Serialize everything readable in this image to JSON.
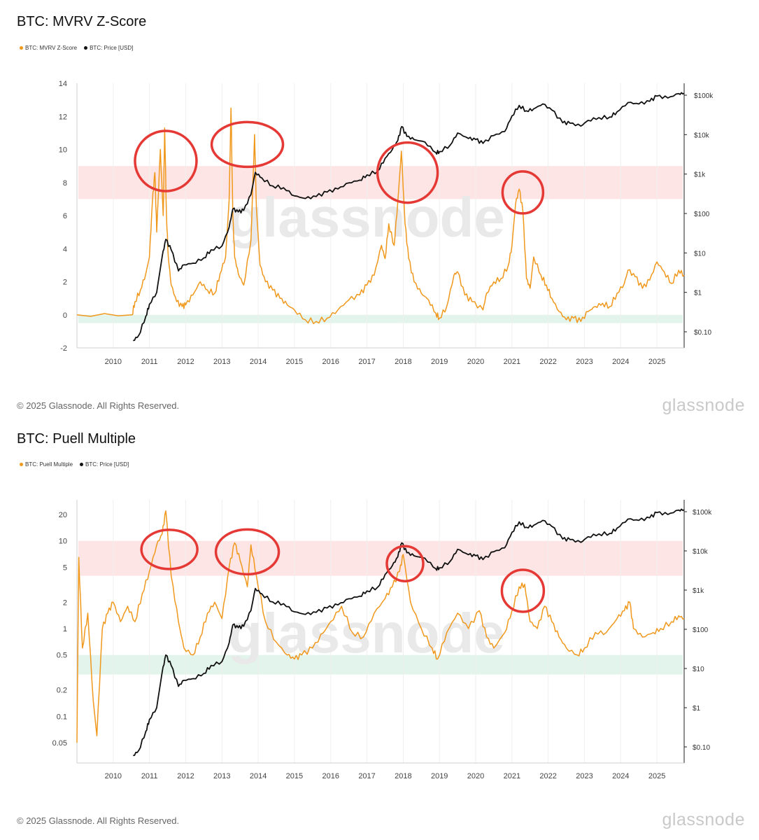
{
  "chart_data": [
    {
      "type": "line",
      "title": "BTC: MVRV Z-Score",
      "legend": [
        "BTC: MVRV Z-Score",
        "BTC: Price [USD]"
      ],
      "legend_placement": "top-left",
      "copyright": "© 2025 Glassnode. All Rights Reserved.",
      "brand": "glassnode",
      "watermark": "glassnode",
      "x_ticks": [
        "2010",
        "2011",
        "2012",
        "2013",
        "2014",
        "2015",
        "2016",
        "2017",
        "2018",
        "2019",
        "2020",
        "2021",
        "2022",
        "2023",
        "2024",
        "2025"
      ],
      "xlim": [
        2009.0,
        2025.75
      ],
      "y_left": {
        "ticks": [
          "14",
          "12",
          "10",
          "8",
          "6",
          "4",
          "2",
          "0",
          "-2"
        ],
        "lim": [
          -2,
          14
        ],
        "scale": "linear"
      },
      "y_right": {
        "ticks": [
          "$100k",
          "$10k",
          "$1k",
          "$100",
          "$10",
          "$1",
          "$0.10"
        ],
        "scale": "log"
      },
      "colors": {
        "indicator": "#f0981c",
        "price": "#111111",
        "high_band": "#fde0e0",
        "low_band": "#dff3ea",
        "circle": "#e53935"
      },
      "bands": {
        "high": [
          7.0,
          9.0
        ],
        "low": [
          -0.5,
          0.0
        ]
      },
      "series": [
        {
          "name": "BTC: MVRV Z-Score",
          "axis": "left",
          "x": [
            2009.0,
            2010.52,
            2010.6,
            2010.75,
            2010.9,
            2011.0,
            2011.08,
            2011.15,
            2011.2,
            2011.3,
            2011.38,
            2011.42,
            2011.47,
            2011.52,
            2011.6,
            2011.75,
            2011.9,
            2012.0,
            2012.2,
            2012.4,
            2012.6,
            2012.8,
            2012.95,
            2013.1,
            2013.2,
            2013.25,
            2013.3,
            2013.35,
            2013.45,
            2013.6,
            2013.8,
            2013.9,
            2013.95,
            2014.05,
            2014.2,
            2014.4,
            2014.6,
            2014.8,
            2015.0,
            2015.3,
            2015.6,
            2015.9,
            2016.2,
            2016.5,
            2016.8,
            2017.0,
            2017.2,
            2017.4,
            2017.5,
            2017.6,
            2017.75,
            2017.85,
            2017.95,
            2018.05,
            2018.15,
            2018.3,
            2018.5,
            2018.7,
            2018.9,
            2019.0,
            2019.2,
            2019.4,
            2019.5,
            2019.7,
            2019.9,
            2020.2,
            2020.3,
            2020.5,
            2020.7,
            2020.9,
            2021.0,
            2021.1,
            2021.2,
            2021.3,
            2021.4,
            2021.5,
            2021.6,
            2021.8,
            2021.95,
            2022.1,
            2022.3,
            2022.5,
            2022.7,
            2022.9,
            2023.1,
            2023.3,
            2023.5,
            2023.7,
            2023.9,
            2024.1,
            2024.2,
            2024.4,
            2024.6,
            2024.8,
            2025.0,
            2025.2,
            2025.4,
            2025.6,
            2025.75
          ],
          "y": [
            0.0,
            0.0,
            0.8,
            1.5,
            2.5,
            3.5,
            6.8,
            8.6,
            5.0,
            10.0,
            6.0,
            11.3,
            6.0,
            3.5,
            1.8,
            0.8,
            0.5,
            0.6,
            1.2,
            2.0,
            1.5,
            1.3,
            2.5,
            3.5,
            7.0,
            12.5,
            6.0,
            3.5,
            2.5,
            1.8,
            4.5,
            10.9,
            6.5,
            3.0,
            2.0,
            1.5,
            1.0,
            0.6,
            0.3,
            -0.3,
            -0.4,
            -0.2,
            0.3,
            0.9,
            1.2,
            1.8,
            2.4,
            4.2,
            3.4,
            5.5,
            4.2,
            6.8,
            9.9,
            5.5,
            3.4,
            2.0,
            1.3,
            0.9,
            0.1,
            -0.2,
            0.5,
            2.4,
            2.6,
            1.2,
            0.8,
            0.3,
            1.3,
            2.0,
            2.2,
            3.0,
            4.2,
            6.7,
            7.6,
            6.3,
            2.2,
            1.6,
            3.5,
            2.4,
            1.8,
            1.0,
            0.2,
            -0.3,
            -0.2,
            -0.4,
            0.2,
            0.5,
            0.7,
            0.5,
            1.3,
            1.9,
            2.7,
            2.3,
            1.6,
            2.1,
            3.2,
            2.6,
            1.9,
            2.7,
            2.4
          ]
        },
        {
          "name": "BTC: Price [USD]",
          "axis": "right",
          "x": [
            2010.55,
            2010.7,
            2010.9,
            2011.0,
            2011.2,
            2011.35,
            2011.45,
            2011.6,
            2011.8,
            2011.95,
            2012.2,
            2012.5,
            2012.7,
            2013.0,
            2013.2,
            2013.3,
            2013.45,
            2013.6,
            2013.8,
            2013.92,
            2014.1,
            2014.4,
            2014.7,
            2015.0,
            2015.3,
            2015.6,
            2015.9,
            2016.2,
            2016.5,
            2016.8,
            2017.0,
            2017.3,
            2017.5,
            2017.7,
            2017.85,
            2017.96,
            2018.1,
            2018.3,
            2018.6,
            2018.9,
            2019.0,
            2019.3,
            2019.5,
            2019.8,
            2020.0,
            2020.2,
            2020.5,
            2020.8,
            2021.0,
            2021.2,
            2021.4,
            2021.6,
            2021.85,
            2022.1,
            2022.4,
            2022.6,
            2022.9,
            2023.1,
            2023.4,
            2023.7,
            2023.9,
            2024.2,
            2024.5,
            2024.8,
            2025.0,
            2025.3,
            2025.6,
            2025.75
          ],
          "y": [
            0.06,
            0.08,
            0.25,
            0.5,
            1.0,
            8.0,
            22.0,
            12.0,
            3.5,
            5.0,
            5.5,
            7.5,
            12.0,
            15.0,
            45.0,
            130.0,
            110.0,
            120.0,
            300.0,
            1100.0,
            800.0,
            500.0,
            450.0,
            280.0,
            240.0,
            270.0,
            350.0,
            420.0,
            600.0,
            700.0,
            950.0,
            1200.0,
            2500.0,
            4200.0,
            7000.0,
            16000.0,
            9000.0,
            7500.0,
            6500.0,
            3500.0,
            3700.0,
            5500.0,
            11000.0,
            8000.0,
            7500.0,
            6000.0,
            9500.0,
            12000.0,
            30000.0,
            55000.0,
            40000.0,
            45000.0,
            60000.0,
            42000.0,
            20000.0,
            19500.0,
            16500.0,
            23000.0,
            27000.0,
            28000.0,
            38000.0,
            65000.0,
            60000.0,
            70000.0,
            95000.0,
            85000.0,
            110000.0,
            112000.0
          ]
        }
      ],
      "annotations": [
        {
          "shape": "circle",
          "center": [
            2011.45,
            9.3
          ]
        },
        {
          "shape": "circle",
          "center": [
            2013.7,
            10.3
          ]
        },
        {
          "shape": "circle",
          "center": [
            2018.12,
            8.6
          ]
        },
        {
          "shape": "circle",
          "center": [
            2021.3,
            7.4
          ]
        }
      ]
    },
    {
      "type": "line",
      "title": "BTC: Puell Multiple",
      "legend": [
        "BTC: Puell Multiple",
        "BTC: Price [USD]"
      ],
      "legend_placement": "top-left",
      "copyright": "© 2025 Glassnode. All Rights Reserved.",
      "brand": "glassnode",
      "watermark": "glassnode",
      "x_ticks": [
        "2010",
        "2011",
        "2012",
        "2013",
        "2014",
        "2015",
        "2016",
        "2017",
        "2018",
        "2019",
        "2020",
        "2021",
        "2022",
        "2023",
        "2024",
        "2025"
      ],
      "xlim": [
        2009.0,
        2025.75
      ],
      "y_left": {
        "ticks": [
          "20",
          "10",
          "5",
          "2",
          "1",
          "0.5",
          "0.2",
          "0.1",
          "0.05"
        ],
        "scale": "log"
      },
      "y_right": {
        "ticks": [
          "$100k",
          "$10k",
          "$1k",
          "$100",
          "$10",
          "$1",
          "$0.10"
        ],
        "scale": "log"
      },
      "colors": {
        "indicator": "#f0981c",
        "price": "#111111",
        "high_band": "#fde0e0",
        "low_band": "#dff3ea",
        "circle": "#e53935"
      },
      "bands": {
        "high": [
          4.0,
          10.0
        ],
        "low": [
          0.3,
          0.5
        ]
      },
      "series": [
        {
          "name": "BTC: Puell Multiple",
          "axis": "left",
          "x": [
            2009.0,
            2009.05,
            2009.15,
            2009.3,
            2009.45,
            2009.55,
            2009.7,
            2009.85,
            2010.0,
            2010.2,
            2010.4,
            2010.6,
            2010.8,
            2011.0,
            2011.2,
            2011.35,
            2011.45,
            2011.6,
            2011.8,
            2011.95,
            2012.2,
            2012.4,
            2012.6,
            2012.8,
            2013.0,
            2013.2,
            2013.35,
            2013.5,
            2013.7,
            2013.8,
            2013.95,
            2014.2,
            2014.5,
            2014.8,
            2015.0,
            2015.2,
            2015.5,
            2015.8,
            2016.0,
            2016.3,
            2016.6,
            2016.9,
            2017.2,
            2017.5,
            2017.7,
            2017.9,
            2018.0,
            2018.2,
            2018.5,
            2018.8,
            2018.95,
            2019.2,
            2019.5,
            2019.8,
            2020.1,
            2020.3,
            2020.5,
            2020.8,
            2021.0,
            2021.2,
            2021.35,
            2021.5,
            2021.7,
            2021.9,
            2022.1,
            2022.3,
            2022.5,
            2022.8,
            2023.0,
            2023.3,
            2023.6,
            2023.9,
            2024.1,
            2024.25,
            2024.35,
            2024.6,
            2024.9,
            2025.1,
            2025.4,
            2025.6,
            2025.75
          ],
          "y": [
            0.05,
            6.5,
            0.6,
            1.5,
            0.15,
            0.06,
            1.0,
            1.5,
            2.0,
            1.2,
            1.8,
            1.2,
            2.5,
            4.5,
            9.0,
            12.0,
            22.0,
            4.0,
            1.2,
            0.6,
            0.5,
            0.8,
            1.5,
            2.0,
            1.3,
            5.0,
            9.5,
            6.0,
            3.0,
            9.0,
            4.0,
            1.2,
            0.7,
            0.5,
            0.45,
            0.5,
            0.6,
            0.9,
            1.2,
            1.8,
            0.9,
            0.8,
            1.5,
            2.2,
            3.0,
            4.5,
            7.0,
            2.0,
            1.0,
            0.6,
            0.45,
            0.9,
            1.5,
            1.0,
            1.6,
            0.8,
            0.6,
            0.9,
            1.6,
            3.0,
            3.2,
            1.2,
            1.0,
            1.8,
            1.2,
            0.8,
            0.6,
            0.5,
            0.6,
            0.9,
            0.9,
            1.3,
            1.6,
            2.0,
            1.0,
            0.8,
            0.9,
            1.0,
            1.2,
            1.4,
            1.3
          ]
        },
        {
          "name": "BTC: Price [USD]",
          "axis": "right",
          "x": [
            2010.55,
            2010.7,
            2010.9,
            2011.0,
            2011.2,
            2011.35,
            2011.45,
            2011.6,
            2011.8,
            2011.95,
            2012.2,
            2012.5,
            2012.7,
            2013.0,
            2013.2,
            2013.3,
            2013.45,
            2013.6,
            2013.8,
            2013.92,
            2014.1,
            2014.4,
            2014.7,
            2015.0,
            2015.3,
            2015.6,
            2015.9,
            2016.2,
            2016.5,
            2016.8,
            2017.0,
            2017.3,
            2017.5,
            2017.7,
            2017.85,
            2017.96,
            2018.1,
            2018.3,
            2018.6,
            2018.9,
            2019.0,
            2019.3,
            2019.5,
            2019.8,
            2020.0,
            2020.2,
            2020.5,
            2020.8,
            2021.0,
            2021.2,
            2021.4,
            2021.6,
            2021.85,
            2022.1,
            2022.4,
            2022.6,
            2022.9,
            2023.1,
            2023.4,
            2023.7,
            2023.9,
            2024.2,
            2024.5,
            2024.8,
            2025.0,
            2025.3,
            2025.6,
            2025.75
          ],
          "y": [
            0.06,
            0.08,
            0.25,
            0.5,
            1.0,
            8.0,
            22.0,
            12.0,
            3.5,
            5.0,
            5.5,
            7.5,
            12.0,
            15.0,
            45.0,
            130.0,
            110.0,
            120.0,
            300.0,
            1100.0,
            800.0,
            500.0,
            450.0,
            280.0,
            240.0,
            270.0,
            350.0,
            420.0,
            600.0,
            700.0,
            950.0,
            1200.0,
            2500.0,
            4200.0,
            7000.0,
            16000.0,
            9000.0,
            7500.0,
            6500.0,
            3500.0,
            3700.0,
            5500.0,
            11000.0,
            8000.0,
            7500.0,
            6000.0,
            9500.0,
            12000.0,
            30000.0,
            55000.0,
            40000.0,
            45000.0,
            60000.0,
            42000.0,
            20000.0,
            19500.0,
            16500.0,
            23000.0,
            27000.0,
            28000.0,
            38000.0,
            65000.0,
            60000.0,
            70000.0,
            95000.0,
            85000.0,
            110000.0,
            112000.0
          ]
        }
      ],
      "annotations": [
        {
          "shape": "circle",
          "center": [
            2011.55,
            8.0
          ]
        },
        {
          "shape": "circle",
          "center": [
            2013.7,
            7.5
          ]
        },
        {
          "shape": "circle",
          "center": [
            2018.05,
            5.5
          ]
        },
        {
          "shape": "circle",
          "center": [
            2021.3,
            2.7
          ]
        }
      ]
    }
  ]
}
